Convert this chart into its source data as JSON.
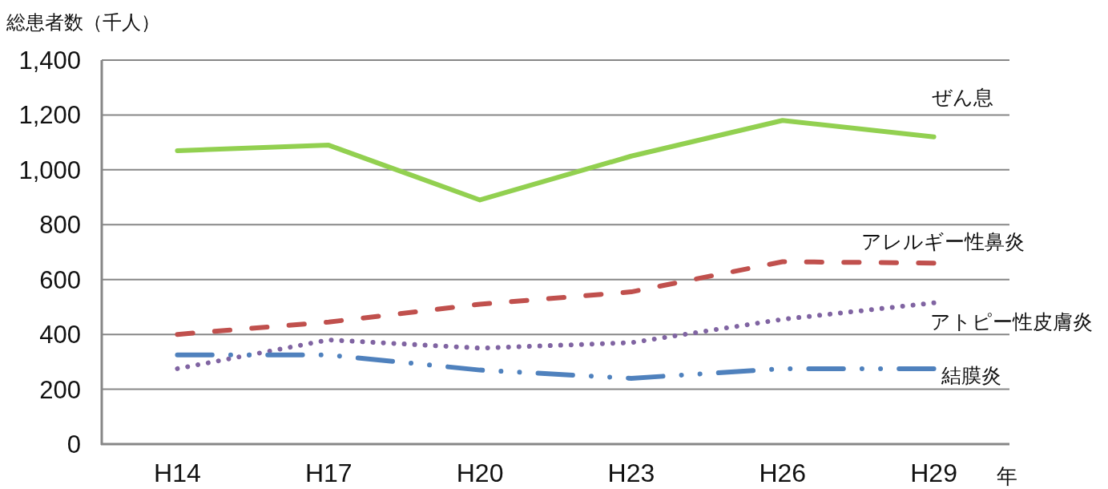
{
  "chart_data": {
    "type": "line",
    "ylabel": "総患者数（千人）",
    "xlabel": "年",
    "categories": [
      "H14",
      "H17",
      "H20",
      "H23",
      "H26",
      "H29"
    ],
    "series": [
      {
        "name": "ぜん息",
        "color": "#92d050",
        "line_style": "solid",
        "values": [
          1070,
          1090,
          890,
          1050,
          1180,
          1120
        ]
      },
      {
        "name": "アレルギー性鼻炎",
        "color": "#c0504d",
        "line_style": "dashed",
        "values": [
          400,
          445,
          510,
          555,
          665,
          660
        ]
      },
      {
        "name": "アトピー性皮膚炎",
        "color": "#8064a2",
        "line_style": "dotted",
        "values": [
          275,
          380,
          350,
          370,
          455,
          515
        ]
      },
      {
        "name": "結膜炎",
        "color": "#4f81bd",
        "line_style": "dashdot",
        "values": [
          325,
          325,
          270,
          240,
          275,
          275
        ]
      }
    ],
    "ylim": [
      0,
      1400
    ],
    "yticks": [
      0,
      200,
      400,
      600,
      800,
      {
        "value": 1000,
        "label": "1,000"
      },
      {
        "value": 1200,
        "label": "1,200"
      },
      {
        "value": 1400,
        "label": "1,400"
      }
    ],
    "grid": "y"
  }
}
